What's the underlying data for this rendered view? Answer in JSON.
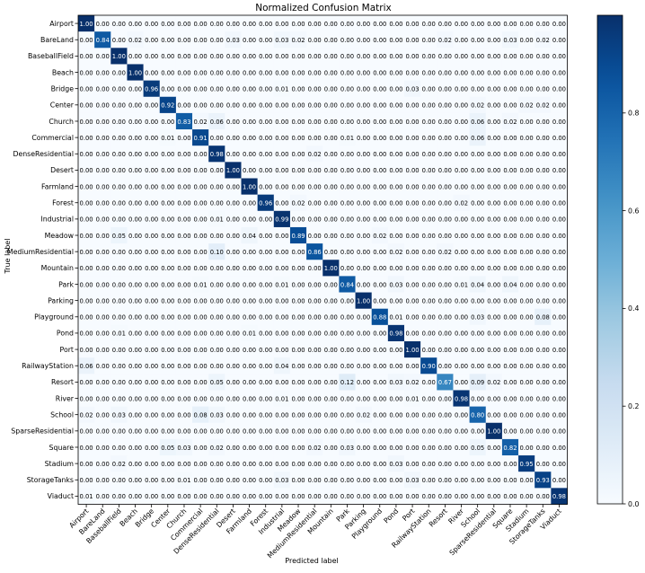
{
  "chart_data": {
    "type": "heatmap",
    "title": "Normalized Confusion Matrix",
    "xlabel": "Predicted label",
    "ylabel": "True label",
    "labels": [
      "Airport",
      "BareLand",
      "BaseballField",
      "Beach",
      "Bridge",
      "Center",
      "Church",
      "Commercial",
      "DenseResidential",
      "Desert",
      "Farmland",
      "Forest",
      "Industrial",
      "Meadow",
      "MediumResidential",
      "Mountain",
      "Park",
      "Parking",
      "Playground",
      "Pond",
      "Port",
      "RailwayStation",
      "Resort",
      "River",
      "School",
      "SparseResidential",
      "Square",
      "Stadium",
      "StorageTanks",
      "Viaduct"
    ],
    "matrix": [
      [
        1.0,
        0,
        0,
        0,
        0,
        0,
        0,
        0,
        0,
        0,
        0,
        0,
        0,
        0,
        0,
        0,
        0,
        0,
        0,
        0,
        0,
        0,
        0,
        0,
        0,
        0,
        0,
        0,
        0,
        0
      ],
      [
        0,
        0.84,
        0,
        0.02,
        0,
        0,
        0,
        0,
        0,
        0.03,
        0,
        0,
        0.03,
        0.02,
        0,
        0,
        0,
        0,
        0,
        0,
        0,
        0,
        0.02,
        0,
        0,
        0,
        0.03,
        0,
        0.02,
        0
      ],
      [
        0,
        0,
        1.0,
        0,
        0,
        0,
        0,
        0,
        0,
        0,
        0,
        0,
        0,
        0,
        0,
        0,
        0,
        0,
        0,
        0,
        0,
        0,
        0,
        0,
        0,
        0,
        0,
        0,
        0,
        0
      ],
      [
        0,
        0,
        0,
        1.0,
        0,
        0,
        0,
        0,
        0,
        0,
        0,
        0,
        0,
        0,
        0,
        0,
        0,
        0,
        0,
        0,
        0,
        0,
        0,
        0,
        0,
        0,
        0,
        0,
        0,
        0
      ],
      [
        0,
        0,
        0,
        0,
        0.96,
        0,
        0,
        0,
        0,
        0,
        0,
        0,
        0.01,
        0,
        0,
        0,
        0,
        0,
        0,
        0,
        0.03,
        0,
        0,
        0,
        0,
        0,
        0,
        0,
        0,
        0
      ],
      [
        0,
        0,
        0,
        0,
        0,
        0.92,
        0,
        0,
        0,
        0,
        0,
        0,
        0,
        0,
        0,
        0,
        0,
        0,
        0,
        0,
        0,
        0,
        0,
        0,
        0.02,
        0,
        0,
        0.02,
        0.02,
        0
      ],
      [
        0,
        0,
        0,
        0,
        0,
        0,
        0.83,
        0.02,
        0.06,
        0,
        0,
        0,
        0,
        0,
        0,
        0,
        0,
        0,
        0,
        0,
        0,
        0,
        0,
        0,
        0.06,
        0,
        0.02,
        0,
        0,
        0
      ],
      [
        0,
        0,
        0,
        0,
        0,
        0.01,
        0,
        0.91,
        0,
        0,
        0,
        0,
        0,
        0,
        0,
        0,
        0.01,
        0,
        0,
        0,
        0,
        0,
        0,
        0,
        0.06,
        0,
        0,
        0,
        0,
        0
      ],
      [
        0,
        0,
        0,
        0,
        0,
        0,
        0,
        0,
        0.98,
        0,
        0,
        0,
        0,
        0,
        0.02,
        0,
        0,
        0,
        0,
        0,
        0,
        0,
        0,
        0,
        0,
        0,
        0,
        0,
        0,
        0
      ],
      [
        0,
        0,
        0,
        0,
        0,
        0,
        0,
        0,
        0,
        1.0,
        0,
        0,
        0,
        0,
        0,
        0,
        0,
        0,
        0,
        0,
        0,
        0,
        0,
        0,
        0,
        0,
        0,
        0,
        0,
        0
      ],
      [
        0,
        0,
        0,
        0,
        0,
        0,
        0,
        0,
        0,
        0,
        1.0,
        0,
        0,
        0,
        0,
        0,
        0,
        0,
        0,
        0,
        0,
        0,
        0,
        0,
        0,
        0,
        0,
        0,
        0,
        0
      ],
      [
        0,
        0,
        0,
        0,
        0,
        0,
        0,
        0,
        0,
        0,
        0,
        0.96,
        0,
        0.02,
        0,
        0,
        0,
        0,
        0,
        0,
        0,
        0,
        0,
        0.02,
        0,
        0,
        0,
        0,
        0,
        0
      ],
      [
        0,
        0,
        0,
        0,
        0,
        0,
        0,
        0,
        0.01,
        0,
        0,
        0,
        0.99,
        0,
        0,
        0,
        0,
        0,
        0,
        0,
        0,
        0,
        0,
        0,
        0,
        0,
        0,
        0,
        0,
        0
      ],
      [
        0,
        0,
        0.05,
        0,
        0,
        0,
        0,
        0,
        0,
        0,
        0.04,
        0,
        0,
        0.89,
        0,
        0,
        0,
        0,
        0.02,
        0,
        0,
        0,
        0,
        0,
        0,
        0,
        0,
        0,
        0,
        0
      ],
      [
        0,
        0,
        0,
        0,
        0,
        0,
        0,
        0,
        0.1,
        0,
        0,
        0,
        0,
        0,
        0.86,
        0,
        0,
        0,
        0,
        0.02,
        0,
        0,
        0.02,
        0,
        0,
        0,
        0,
        0,
        0,
        0
      ],
      [
        0,
        0,
        0,
        0,
        0,
        0,
        0,
        0,
        0,
        0,
        0,
        0,
        0,
        0,
        0,
        1.0,
        0,
        0,
        0,
        0,
        0,
        0,
        0,
        0,
        0,
        0,
        0,
        0,
        0,
        0
      ],
      [
        0,
        0,
        0,
        0,
        0,
        0,
        0,
        0.01,
        0,
        0,
        0,
        0,
        0.01,
        0,
        0,
        0,
        0.84,
        0,
        0,
        0.03,
        0,
        0,
        0,
        0.01,
        0.04,
        0,
        0.04,
        0,
        0,
        0
      ],
      [
        0,
        0,
        0,
        0,
        0,
        0,
        0,
        0,
        0,
        0,
        0,
        0,
        0,
        0,
        0,
        0,
        0,
        1.0,
        0,
        0,
        0,
        0,
        0,
        0,
        0,
        0,
        0,
        0,
        0,
        0
      ],
      [
        0,
        0,
        0,
        0,
        0,
        0,
        0,
        0,
        0,
        0,
        0,
        0,
        0,
        0,
        0,
        0,
        0,
        0,
        0.88,
        0.01,
        0,
        0,
        0,
        0,
        0.03,
        0,
        0,
        0,
        0.08,
        0
      ],
      [
        0,
        0,
        0.01,
        0,
        0,
        0,
        0,
        0,
        0,
        0,
        0.01,
        0,
        0,
        0,
        0,
        0,
        0,
        0,
        0,
        0.98,
        0,
        0,
        0,
        0,
        0,
        0,
        0,
        0,
        0,
        0
      ],
      [
        0,
        0,
        0,
        0,
        0,
        0,
        0,
        0,
        0,
        0,
        0,
        0,
        0,
        0,
        0,
        0,
        0,
        0,
        0,
        0,
        1.0,
        0,
        0,
        0,
        0,
        0,
        0,
        0,
        0,
        0
      ],
      [
        0.06,
        0,
        0,
        0,
        0,
        0,
        0,
        0,
        0,
        0,
        0,
        0,
        0.04,
        0,
        0,
        0,
        0,
        0,
        0,
        0,
        0,
        0.9,
        0,
        0,
        0,
        0,
        0,
        0,
        0,
        0
      ],
      [
        0,
        0,
        0,
        0,
        0,
        0,
        0,
        0,
        0.05,
        0,
        0,
        0,
        0,
        0,
        0,
        0,
        0.12,
        0,
        0,
        0.03,
        0.02,
        0,
        0.67,
        0,
        0.09,
        0.02,
        0,
        0,
        0,
        0
      ],
      [
        0,
        0,
        0,
        0,
        0,
        0,
        0,
        0,
        0,
        0,
        0,
        0,
        0.01,
        0,
        0,
        0,
        0,
        0,
        0,
        0,
        0.01,
        0,
        0,
        0.98,
        0,
        0,
        0,
        0,
        0,
        0
      ],
      [
        0.02,
        0,
        0.03,
        0,
        0,
        0,
        0,
        0.08,
        0.03,
        0,
        0,
        0,
        0,
        0,
        0,
        0,
        0,
        0.02,
        0,
        0,
        0,
        0,
        0,
        0,
        0.8,
        0,
        0,
        0,
        0,
        0
      ],
      [
        0,
        0,
        0,
        0,
        0,
        0,
        0,
        0,
        0,
        0,
        0,
        0,
        0,
        0,
        0,
        0,
        0,
        0,
        0,
        0,
        0,
        0,
        0,
        0,
        0,
        1.0,
        0,
        0,
        0,
        0
      ],
      [
        0,
        0,
        0,
        0,
        0,
        0.05,
        0.03,
        0,
        0.02,
        0,
        0,
        0,
        0,
        0,
        0.02,
        0,
        0.03,
        0,
        0,
        0,
        0,
        0,
        0,
        0,
        0.05,
        0,
        0.82,
        0,
        0,
        0
      ],
      [
        0,
        0,
        0.02,
        0,
        0,
        0,
        0,
        0,
        0,
        0,
        0,
        0,
        0,
        0,
        0,
        0,
        0,
        0,
        0,
        0.03,
        0,
        0,
        0,
        0,
        0,
        0,
        0,
        0.95,
        0,
        0
      ],
      [
        0,
        0,
        0,
        0,
        0,
        0,
        0.01,
        0,
        0,
        0,
        0,
        0,
        0.03,
        0,
        0,
        0,
        0,
        0,
        0,
        0,
        0.03,
        0,
        0,
        0,
        0,
        0,
        0,
        0,
        0.93,
        0
      ],
      [
        0.01,
        0,
        0,
        0,
        0,
        0,
        0,
        0,
        0,
        0,
        0,
        0,
        0,
        0,
        0,
        0,
        0,
        0,
        0,
        0,
        0,
        0,
        0,
        0,
        0,
        0,
        0,
        0,
        0,
        0.98
      ]
    ],
    "zlim": [
      0,
      1
    ],
    "colorbar_ticks": [
      "0.0",
      "0.2",
      "0.4",
      "0.6",
      "0.8"
    ],
    "colormap": "Blues",
    "colors": {
      "low": "#f7fbff",
      "high": "#08306b"
    },
    "value_format": "2 decimals",
    "grid": false,
    "colorbar_placement": "right"
  }
}
